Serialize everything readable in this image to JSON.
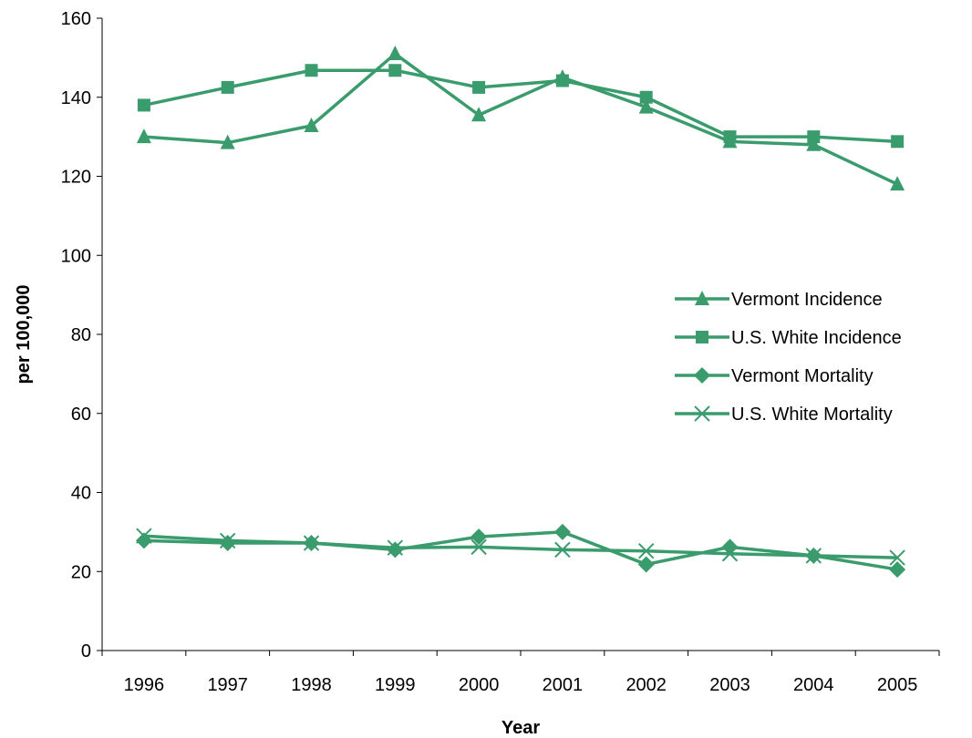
{
  "chart_data": {
    "type": "line",
    "title": "",
    "xlabel": "Year",
    "ylabel": "per 100,000",
    "categories": [
      "1996",
      "1997",
      "1998",
      "1999",
      "2000",
      "2001",
      "2002",
      "2003",
      "2004",
      "2005"
    ],
    "ylim": [
      0,
      160
    ],
    "yticks": [
      0,
      20,
      40,
      60,
      80,
      100,
      120,
      140,
      160
    ],
    "grid": false,
    "legend_position": "right",
    "color": "#3a9b6c",
    "series": [
      {
        "name": "Vermont Incidence",
        "marker": "triangle",
        "values": [
          130.0,
          128.5,
          132.8,
          151.0,
          135.5,
          145.0,
          137.5,
          128.8,
          128.0,
          118.0
        ]
      },
      {
        "name": "U.S. White Incidence",
        "marker": "square",
        "values": [
          138.0,
          142.5,
          146.8,
          146.8,
          142.5,
          144.2,
          140.0,
          130.0,
          130.0,
          128.8
        ]
      },
      {
        "name": "Vermont Mortality",
        "marker": "diamond",
        "values": [
          27.8,
          27.2,
          27.2,
          25.5,
          28.8,
          30.0,
          21.8,
          26.2,
          24.0,
          20.5
        ]
      },
      {
        "name": "U.S. White Mortality",
        "marker": "x",
        "values": [
          29.0,
          27.8,
          27.2,
          26.0,
          26.2,
          25.5,
          25.2,
          24.5,
          24.0,
          23.5
        ]
      }
    ]
  }
}
